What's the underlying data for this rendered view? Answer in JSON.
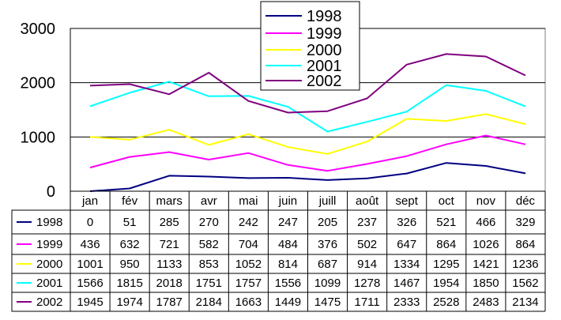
{
  "chart_data": {
    "type": "line",
    "title": "",
    "xlabel": "",
    "ylabel": "",
    "categories": [
      "jan",
      "fév",
      "mars",
      "avr",
      "mai",
      "juin",
      "juill",
      "août",
      "sept",
      "oct",
      "nov",
      "déc"
    ],
    "ylim": [
      0,
      3000
    ],
    "yticks": [
      "0",
      "1000",
      "2000",
      "3000"
    ],
    "grid": true,
    "legend_placement": "top-center",
    "data_table": true,
    "series": [
      {
        "name": "1998",
        "color": "#000080",
        "values": [
          0,
          51,
          285,
          270,
          242,
          247,
          205,
          237,
          326,
          521,
          466,
          329
        ]
      },
      {
        "name": "1999",
        "color": "#FF00FF",
        "values": [
          436,
          632,
          721,
          582,
          704,
          484,
          376,
          502,
          647,
          864,
          1026,
          864
        ]
      },
      {
        "name": "2000",
        "color": "#FFFF00",
        "values": [
          1001,
          950,
          1133,
          853,
          1052,
          814,
          687,
          914,
          1334,
          1295,
          1421,
          1236
        ]
      },
      {
        "name": "2001",
        "color": "#00FFFF",
        "values": [
          1566,
          1815,
          2018,
          1751,
          1757,
          1556,
          1099,
          1278,
          1467,
          1954,
          1850,
          1562
        ]
      },
      {
        "name": "2002",
        "color": "#800080",
        "values": [
          1945,
          1974,
          1787,
          2184,
          1663,
          1449,
          1475,
          1711,
          2333,
          2528,
          2483,
          2134
        ]
      }
    ]
  }
}
